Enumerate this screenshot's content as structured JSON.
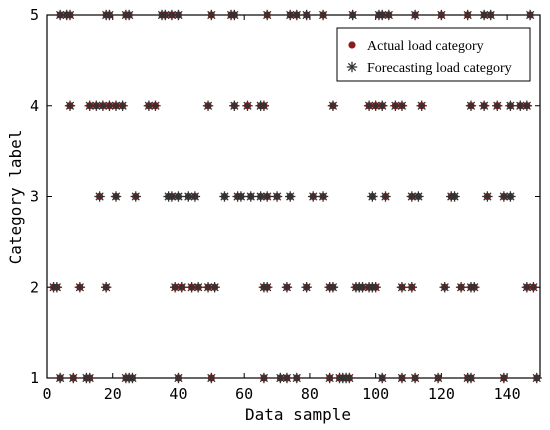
{
  "chart_data": {
    "type": "scatter",
    "xlabel": "Data sample",
    "ylabel": "Category label",
    "xlim": [
      0,
      150
    ],
    "ylim": [
      1,
      5
    ],
    "x_ticks": [
      "0",
      "20",
      "40",
      "60",
      "80",
      "100",
      "120",
      "140"
    ],
    "y_ticks": [
      "1",
      "2",
      "3",
      "4",
      "5"
    ],
    "legend_position": "top-right",
    "series": [
      {
        "name": "Actual load category",
        "marker": "dot",
        "color": "#8b1a1a",
        "points": [
          [
            4,
            5
          ],
          [
            6,
            5
          ],
          [
            7,
            5
          ],
          [
            18,
            5
          ],
          [
            19,
            5
          ],
          [
            24,
            5
          ],
          [
            25,
            5
          ],
          [
            35,
            5
          ],
          [
            36,
            5
          ],
          [
            38,
            5
          ],
          [
            40,
            5
          ],
          [
            50,
            5
          ],
          [
            56,
            5
          ],
          [
            57,
            5
          ],
          [
            67,
            5
          ],
          [
            74,
            5
          ],
          [
            76,
            5
          ],
          [
            79,
            5
          ],
          [
            84,
            5
          ],
          [
            93,
            5
          ],
          [
            101,
            5
          ],
          [
            102,
            5
          ],
          [
            104,
            5
          ],
          [
            112,
            5
          ],
          [
            120,
            5
          ],
          [
            128,
            5
          ],
          [
            133,
            5
          ],
          [
            135,
            5
          ],
          [
            147,
            5
          ],
          [
            7,
            4
          ],
          [
            13,
            4
          ],
          [
            15,
            4
          ],
          [
            17,
            4
          ],
          [
            19,
            4
          ],
          [
            21,
            4
          ],
          [
            23,
            4
          ],
          [
            31,
            4
          ],
          [
            33,
            4
          ],
          [
            49,
            4
          ],
          [
            57,
            4
          ],
          [
            61,
            4
          ],
          [
            65,
            4
          ],
          [
            66,
            4
          ],
          [
            87,
            4
          ],
          [
            98,
            4
          ],
          [
            100,
            4
          ],
          [
            102,
            4
          ],
          [
            106,
            4
          ],
          [
            108,
            4
          ],
          [
            114,
            4
          ],
          [
            129,
            4
          ],
          [
            133,
            4
          ],
          [
            137,
            4
          ],
          [
            141,
            4
          ],
          [
            144,
            4
          ],
          [
            146,
            4
          ],
          [
            16,
            3
          ],
          [
            21,
            3
          ],
          [
            27,
            3
          ],
          [
            37,
            3
          ],
          [
            38,
            3
          ],
          [
            40,
            3
          ],
          [
            43,
            3
          ],
          [
            45,
            3
          ],
          [
            54,
            3
          ],
          [
            58,
            3
          ],
          [
            59,
            3
          ],
          [
            62,
            3
          ],
          [
            65,
            3
          ],
          [
            67,
            3
          ],
          [
            70,
            3
          ],
          [
            74,
            3
          ],
          [
            81,
            3
          ],
          [
            84,
            3
          ],
          [
            99,
            3
          ],
          [
            103,
            3
          ],
          [
            111,
            3
          ],
          [
            113,
            3
          ],
          [
            123,
            3
          ],
          [
            124,
            3
          ],
          [
            134,
            3
          ],
          [
            139,
            3
          ],
          [
            141,
            3
          ],
          [
            2,
            2
          ],
          [
            3,
            2
          ],
          [
            10,
            2
          ],
          [
            18,
            2
          ],
          [
            39,
            2
          ],
          [
            41,
            2
          ],
          [
            44,
            2
          ],
          [
            46,
            2
          ],
          [
            49,
            2
          ],
          [
            51,
            2
          ],
          [
            66,
            2
          ],
          [
            67,
            2
          ],
          [
            73,
            2
          ],
          [
            79,
            2
          ],
          [
            86,
            2
          ],
          [
            87,
            2
          ],
          [
            94,
            2
          ],
          [
            95,
            2
          ],
          [
            96,
            2
          ],
          [
            98,
            2
          ],
          [
            99,
            2
          ],
          [
            100,
            2
          ],
          [
            108,
            2
          ],
          [
            111,
            2
          ],
          [
            121,
            2
          ],
          [
            126,
            2
          ],
          [
            129,
            2
          ],
          [
            130,
            2
          ],
          [
            146,
            2
          ],
          [
            148,
            2
          ],
          [
            4,
            1
          ],
          [
            8,
            1
          ],
          [
            12,
            1
          ],
          [
            13,
            1
          ],
          [
            24,
            1
          ],
          [
            25,
            1
          ],
          [
            26,
            1
          ],
          [
            40,
            1
          ],
          [
            50,
            1
          ],
          [
            66,
            1
          ],
          [
            71,
            1
          ],
          [
            73,
            1
          ],
          [
            76,
            1
          ],
          [
            86,
            1
          ],
          [
            89,
            1
          ],
          [
            90,
            1
          ],
          [
            91,
            1
          ],
          [
            92,
            1
          ],
          [
            102,
            1
          ],
          [
            108,
            1
          ],
          [
            112,
            1
          ],
          [
            119,
            1
          ],
          [
            128,
            1
          ],
          [
            129,
            1
          ],
          [
            139,
            1
          ],
          [
            149,
            1
          ]
        ]
      },
      {
        "name": "Forecasting load category",
        "marker": "asterisk",
        "color": "#333333",
        "points": [
          [
            4,
            5
          ],
          [
            6,
            5
          ],
          [
            7,
            5
          ],
          [
            18,
            5
          ],
          [
            19,
            5
          ],
          [
            24,
            5
          ],
          [
            25,
            5
          ],
          [
            35,
            5
          ],
          [
            36,
            5
          ],
          [
            38,
            5
          ],
          [
            40,
            5
          ],
          [
            50,
            5
          ],
          [
            56,
            5
          ],
          [
            57,
            5
          ],
          [
            67,
            5
          ],
          [
            74,
            5
          ],
          [
            76,
            5
          ],
          [
            79,
            5
          ],
          [
            84,
            5
          ],
          [
            93,
            5
          ],
          [
            101,
            5
          ],
          [
            102,
            5
          ],
          [
            104,
            5
          ],
          [
            112,
            5
          ],
          [
            120,
            5
          ],
          [
            128,
            5
          ],
          [
            133,
            5
          ],
          [
            135,
            5
          ],
          [
            147,
            5
          ],
          [
            7,
            4
          ],
          [
            13,
            4
          ],
          [
            15,
            4
          ],
          [
            17,
            4
          ],
          [
            19,
            4
          ],
          [
            21,
            4
          ],
          [
            23,
            4
          ],
          [
            31,
            4
          ],
          [
            33,
            4
          ],
          [
            49,
            4
          ],
          [
            57,
            4
          ],
          [
            61,
            4
          ],
          [
            65,
            4
          ],
          [
            66,
            4
          ],
          [
            87,
            4
          ],
          [
            98,
            4
          ],
          [
            100,
            4
          ],
          [
            102,
            4
          ],
          [
            106,
            4
          ],
          [
            108,
            4
          ],
          [
            114,
            4
          ],
          [
            129,
            4
          ],
          [
            133,
            4
          ],
          [
            137,
            4
          ],
          [
            141,
            4
          ],
          [
            144,
            4
          ],
          [
            146,
            4
          ],
          [
            16,
            3
          ],
          [
            21,
            3
          ],
          [
            27,
            3
          ],
          [
            37,
            3
          ],
          [
            38,
            3
          ],
          [
            40,
            3
          ],
          [
            43,
            3
          ],
          [
            45,
            3
          ],
          [
            54,
            3
          ],
          [
            58,
            3
          ],
          [
            59,
            3
          ],
          [
            62,
            3
          ],
          [
            65,
            3
          ],
          [
            67,
            3
          ],
          [
            70,
            3
          ],
          [
            74,
            3
          ],
          [
            81,
            3
          ],
          [
            84,
            3
          ],
          [
            99,
            3
          ],
          [
            103,
            3
          ],
          [
            111,
            3
          ],
          [
            113,
            3
          ],
          [
            123,
            3
          ],
          [
            124,
            3
          ],
          [
            134,
            3
          ],
          [
            139,
            3
          ],
          [
            141,
            3
          ],
          [
            2,
            2
          ],
          [
            3,
            2
          ],
          [
            10,
            2
          ],
          [
            18,
            2
          ],
          [
            39,
            2
          ],
          [
            41,
            2
          ],
          [
            44,
            2
          ],
          [
            46,
            2
          ],
          [
            49,
            2
          ],
          [
            51,
            2
          ],
          [
            66,
            2
          ],
          [
            67,
            2
          ],
          [
            73,
            2
          ],
          [
            79,
            2
          ],
          [
            86,
            2
          ],
          [
            87,
            2
          ],
          [
            94,
            2
          ],
          [
            95,
            2
          ],
          [
            96,
            2
          ],
          [
            98,
            2
          ],
          [
            99,
            2
          ],
          [
            100,
            2
          ],
          [
            108,
            2
          ],
          [
            111,
            2
          ],
          [
            121,
            2
          ],
          [
            126,
            2
          ],
          [
            129,
            2
          ],
          [
            130,
            2
          ],
          [
            146,
            2
          ],
          [
            148,
            2
          ],
          [
            4,
            1
          ],
          [
            8,
            1
          ],
          [
            12,
            1
          ],
          [
            13,
            1
          ],
          [
            24,
            1
          ],
          [
            25,
            1
          ],
          [
            26,
            1
          ],
          [
            40,
            1
          ],
          [
            50,
            1
          ],
          [
            66,
            1
          ],
          [
            71,
            1
          ],
          [
            73,
            1
          ],
          [
            76,
            1
          ],
          [
            86,
            1
          ],
          [
            89,
            1
          ],
          [
            90,
            1
          ],
          [
            91,
            1
          ],
          [
            92,
            1
          ],
          [
            102,
            1
          ],
          [
            108,
            1
          ],
          [
            112,
            1
          ],
          [
            119,
            1
          ],
          [
            128,
            1
          ],
          [
            129,
            1
          ],
          [
            139,
            1
          ],
          [
            149,
            1
          ]
        ]
      }
    ]
  }
}
